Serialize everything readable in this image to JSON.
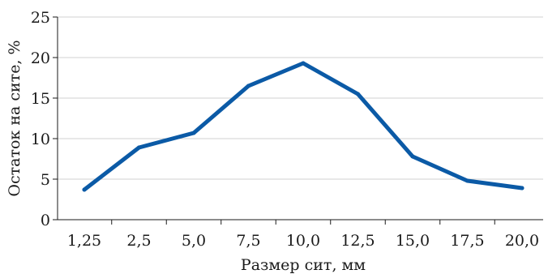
{
  "chart_data": {
    "type": "line",
    "title": "",
    "xlabel": "Размер сит, мм",
    "ylabel": "Остаток на сите, %",
    "categories": [
      "1,25",
      "2,5",
      "5,0",
      "7,5",
      "10,0",
      "12,5",
      "15,0",
      "17,5",
      "20,0"
    ],
    "series": [
      {
        "values": [
          3.7,
          8.9,
          10.7,
          16.5,
          19.3,
          15.5,
          7.8,
          4.8,
          3.9
        ]
      }
    ],
    "ylim": [
      0,
      25
    ],
    "yticks": [
      "0",
      "5",
      "10",
      "15",
      "20",
      "25"
    ],
    "grid": "horizontal",
    "legend": "none",
    "line_color": "#0b5aa6",
    "grid_color": "#d0d0d0",
    "axis_color": "#1a1a1a"
  }
}
